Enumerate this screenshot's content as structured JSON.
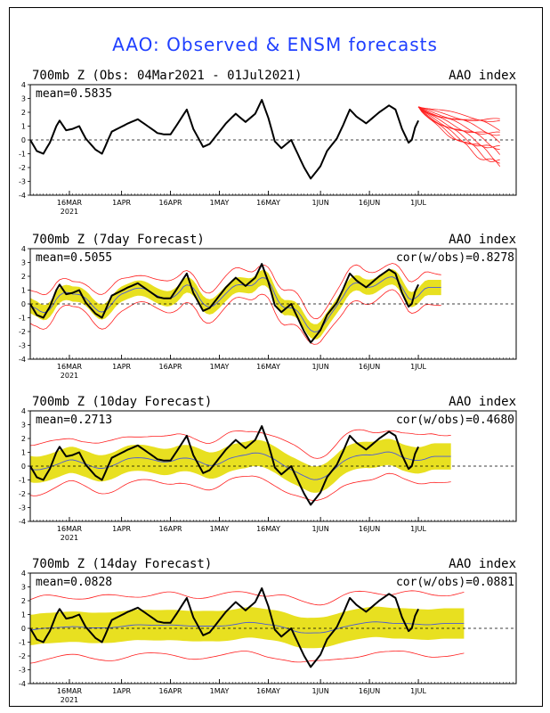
{
  "title": "AAO: Observed & ENSM forecasts",
  "x_ticks": [
    {
      "date": "2021-03-16",
      "label": "16MAR",
      "sub": "2021"
    },
    {
      "date": "2021-04-01",
      "label": "1APR",
      "sub": ""
    },
    {
      "date": "2021-04-16",
      "label": "16APR",
      "sub": ""
    },
    {
      "date": "2021-05-01",
      "label": "1MAY",
      "sub": ""
    },
    {
      "date": "2021-05-16",
      "label": "16MAY",
      "sub": ""
    },
    {
      "date": "2021-06-01",
      "label": "1JUN",
      "sub": ""
    },
    {
      "date": "2021-06-16",
      "label": "16JUN",
      "sub": ""
    },
    {
      "date": "2021-07-01",
      "label": "1JUL",
      "sub": ""
    }
  ],
  "colors": {
    "observed": "#000000",
    "ensemble_mean": "#4a5ad8",
    "spread": "#e8e020",
    "members": "#ff2020",
    "title": "#1f3fff"
  },
  "chart_data": [
    {
      "type": "line",
      "name": "observed",
      "title": "700mb  Z (Obs: 04Mar2021 - 01Jul2021)",
      "right_label": "AAO index",
      "stat_left": "mean=0.5835",
      "stat_right": "",
      "xlim": [
        "2021-03-04",
        "2021-07-31"
      ],
      "ylim": [
        -4,
        4
      ],
      "yticks": [
        -4,
        -3,
        -2,
        -1,
        0,
        1,
        2,
        3,
        4
      ],
      "observed_end": "2021-07-01",
      "forecast_start": "2021-07-01",
      "forecast_end": "2021-07-26",
      "forecast_members": 12
    },
    {
      "type": "line",
      "name": "7day",
      "title": "700mb  Z (7day Forecast)",
      "right_label": "AAO index",
      "stat_left": "mean=0.5055",
      "stat_right": "cor(w/obs)=0.8278",
      "xlim": [
        "2021-03-04",
        "2021-07-31"
      ],
      "ylim": [
        -4,
        4
      ],
      "yticks": [
        -4,
        -3,
        -2,
        -1,
        0,
        1,
        2,
        3,
        4
      ],
      "forecast_end": "2021-07-08"
    },
    {
      "type": "line",
      "name": "10day",
      "title": "700mb  Z (10day Forecast)",
      "right_label": "AAO index",
      "stat_left": "mean=0.2713",
      "stat_right": "cor(w/obs)=0.4680",
      "xlim": [
        "2021-03-04",
        "2021-07-31"
      ],
      "ylim": [
        -4,
        4
      ],
      "yticks": [
        -4,
        -3,
        -2,
        -1,
        0,
        1,
        2,
        3,
        4
      ],
      "forecast_end": "2021-07-11"
    },
    {
      "type": "line",
      "name": "14day",
      "title": "700mb  Z (14day Forecast)",
      "right_label": "AAO index",
      "stat_left": "mean=0.0828",
      "stat_right": "cor(w/obs)=0.0881",
      "xlim": [
        "2021-03-04",
        "2021-07-31"
      ],
      "ylim": [
        -4,
        4
      ],
      "yticks": [
        -4,
        -3,
        -2,
        -1,
        0,
        1,
        2,
        3,
        4
      ],
      "forecast_end": "2021-07-15"
    }
  ]
}
